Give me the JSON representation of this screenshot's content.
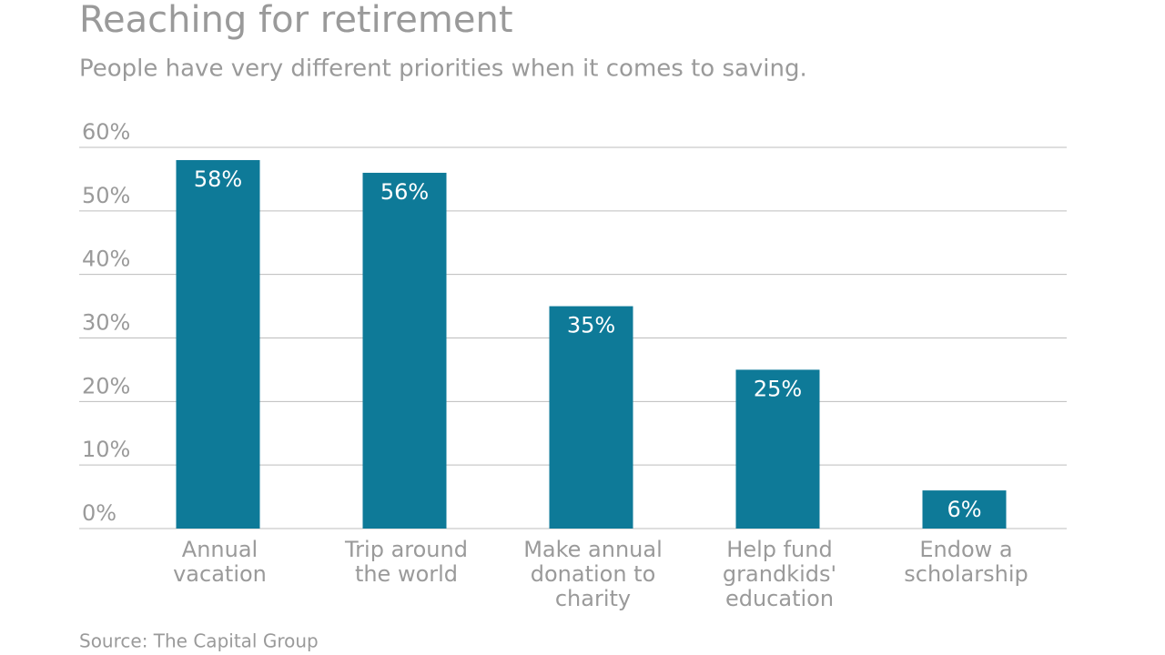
{
  "chart_data": {
    "type": "bar",
    "title": "Reaching for retirement",
    "subtitle": "People have very different priorities when it comes to saving.",
    "source": "Source: The Capital Group",
    "categories": [
      [
        "Annual",
        "vacation"
      ],
      [
        "Trip around",
        "the world"
      ],
      [
        "Make annual",
        "donation to",
        "charity"
      ],
      [
        "Help fund",
        "grandkids'",
        "education"
      ],
      [
        "Endow a",
        "scholarship"
      ]
    ],
    "values": [
      58,
      56,
      35,
      25,
      6
    ],
    "value_labels": [
      "58%",
      "56%",
      "35%",
      "25%",
      "6%"
    ],
    "color": "#0e7a98",
    "ylim": [
      0,
      60
    ],
    "yticks": [
      {
        "value": 0,
        "label": "0%"
      },
      {
        "value": 10,
        "label": "10%"
      },
      {
        "value": 20,
        "label": "20%"
      },
      {
        "value": 30,
        "label": "30%"
      },
      {
        "value": 40,
        "label": "40%"
      },
      {
        "value": 50,
        "label": "50%"
      },
      {
        "value": 60,
        "label": "60%"
      }
    ],
    "grid": true
  }
}
